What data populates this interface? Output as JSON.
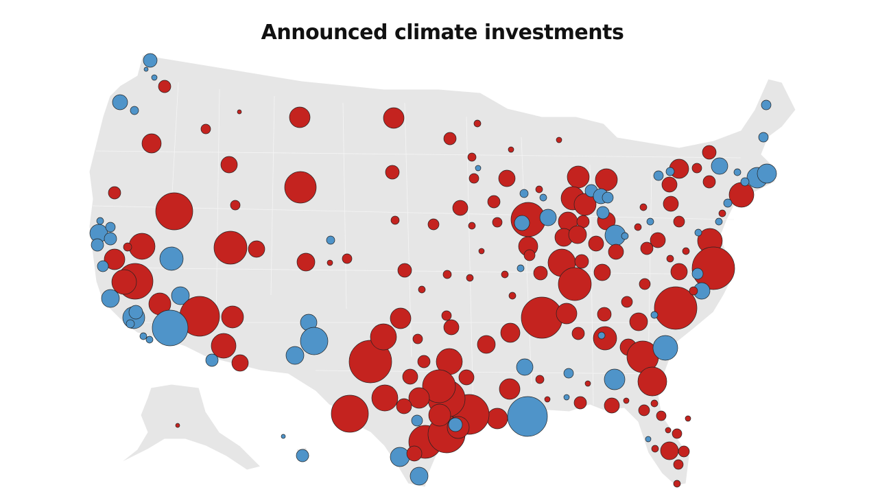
{
  "title": "Announced climate investments",
  "colors": {
    "background": "#ffffff",
    "land": "#e6e6e6",
    "district_border": "#ffffff",
    "red_districts": "#c4231f",
    "blue_districts": "#4f94c9",
    "bubble_outline": "#222222"
  },
  "map": {
    "type": "proportional-symbol",
    "region": "United States congressional districts",
    "symbol_colors": [
      "red",
      "blue"
    ]
  }
}
